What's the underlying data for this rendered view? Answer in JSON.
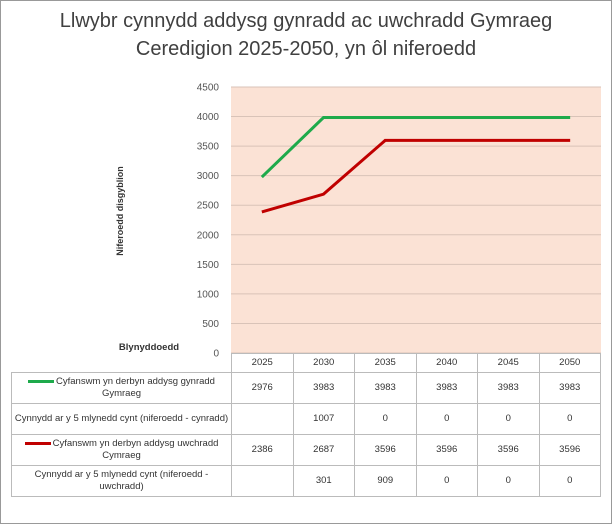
{
  "chart_data": {
    "type": "line",
    "title": "Llwybr cynnydd addysg gynradd ac uwchradd Gymraeg Ceredigion 2025-2050, yn ôl niferoedd",
    "y_label": "Niferoedd disgyblion",
    "x_label": "Blynyddoedd",
    "categories": [
      "2025",
      "2030",
      "2035",
      "2040",
      "2045",
      "2050"
    ],
    "series": [
      {
        "name": "Cyfanswm yn derbyn addysg gynradd Gymraeg",
        "color": "#1eaa4b",
        "values": [
          2976,
          3983,
          3983,
          3983,
          3983,
          3983
        ]
      },
      {
        "name": "Cyfanswm yn derbyn addysg uwchradd Cymraeg",
        "color": "#c00000",
        "values": [
          2386,
          2687,
          3596,
          3596,
          3596,
          3596
        ]
      }
    ],
    "table_rows": [
      {
        "name": "Cynnydd ar y 5 mlynedd cynt (niferoedd - cynradd)",
        "values": [
          null,
          1007,
          0,
          0,
          0,
          0
        ]
      },
      {
        "name": "Cynnydd ar y 5 mlynedd cynt (niferoedd - uwchradd)",
        "values": [
          null,
          301,
          909,
          0,
          0,
          0
        ]
      }
    ],
    "ylim": [
      0,
      4500
    ],
    "yticks": [
      0,
      500,
      1000,
      1500,
      2000,
      2500,
      3000,
      3500,
      4000,
      4500
    ],
    "grid": true,
    "plot_background": "#fbe2d5"
  }
}
